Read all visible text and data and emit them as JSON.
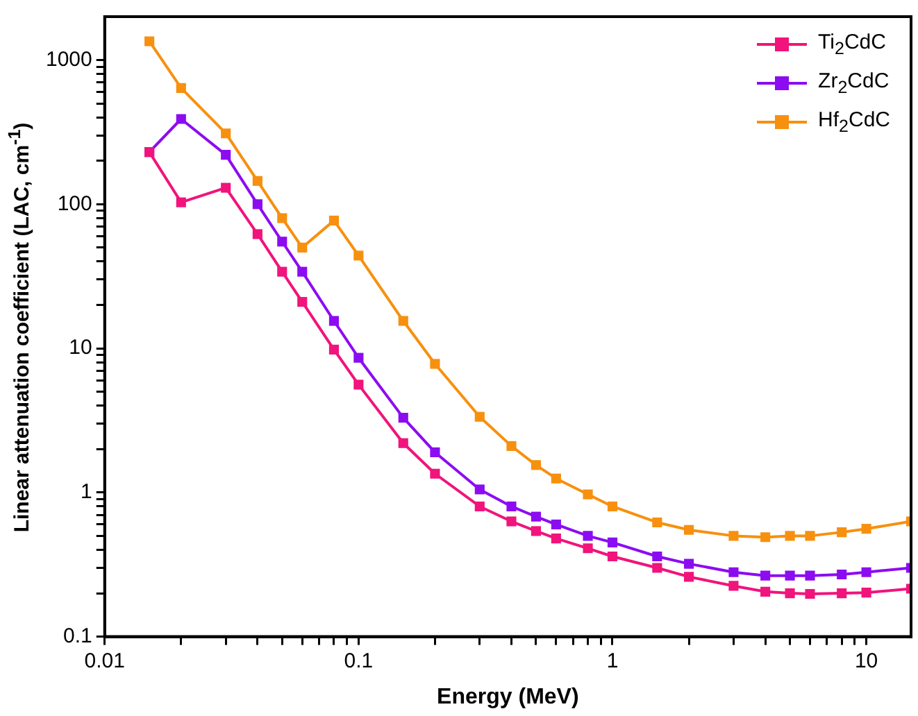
{
  "chart_data": {
    "type": "line",
    "xlabel": "Energy (MeV)",
    "ylabel": "Linear attenuation coefficient (LAC, cm$^{-1}$)",
    "x": [
      0.015,
      0.02,
      0.03,
      0.04,
      0.05,
      0.06,
      0.08,
      0.1,
      0.15,
      0.2,
      0.3,
      0.4,
      0.5,
      0.6,
      0.8,
      1,
      1.5,
      2,
      3,
      4,
      5,
      6,
      8,
      10,
      15
    ],
    "series": [
      {
        "name": "Ti$_{2}$CdC",
        "color": "#f0147c",
        "values": [
          230,
          103,
          130,
          62,
          34,
          21,
          9.8,
          5.6,
          2.2,
          1.35,
          0.8,
          0.63,
          0.54,
          0.48,
          0.41,
          0.36,
          0.3,
          0.26,
          0.225,
          0.205,
          0.2,
          0.198,
          0.2,
          0.202,
          0.215
        ]
      },
      {
        "name": "Zr$_{2}$CdC",
        "color": "#8c0cf2",
        "values": [
          230,
          390,
          220,
          100,
          55,
          34,
          15.5,
          8.6,
          3.3,
          1.9,
          1.05,
          0.8,
          0.68,
          0.6,
          0.5,
          0.45,
          0.36,
          0.32,
          0.28,
          0.265,
          0.265,
          0.265,
          0.27,
          0.28,
          0.3
        ]
      },
      {
        "name": "Hf$_{2}$CdC",
        "color": "#f7900e",
        "values": [
          1350,
          640,
          310,
          145,
          80,
          50,
          77,
          44,
          15.5,
          7.8,
          3.35,
          2.1,
          1.55,
          1.25,
          0.97,
          0.8,
          0.62,
          0.55,
          0.5,
          0.49,
          0.5,
          0.5,
          0.53,
          0.56,
          0.63
        ]
      }
    ],
    "log": "xy",
    "xlim": [
      0.01,
      15
    ],
    "ylim": [
      0.1,
      2000
    ],
    "xticks": [
      0.01,
      {
        "value": 0.02,
        "label": null
      },
      {
        "value": 0.03,
        "label": null
      },
      {
        "value": 0.04,
        "label": null
      },
      {
        "value": 0.05,
        "label": null
      },
      {
        "value": 0.06,
        "label": null
      },
      {
        "value": 0.07,
        "label": null
      },
      {
        "value": 0.08,
        "label": null
      },
      {
        "value": 0.09,
        "label": null
      },
      0.1,
      {
        "value": 0.2,
        "label": null
      },
      {
        "value": 0.3,
        "label": null
      },
      {
        "value": 0.4,
        "label": null
      },
      {
        "value": 0.5,
        "label": null
      },
      {
        "value": 0.6,
        "label": null
      },
      {
        "value": 0.7,
        "label": null
      },
      {
        "value": 0.8,
        "label": null
      },
      {
        "value": 0.9,
        "label": null
      },
      1,
      {
        "value": 2,
        "label": null
      },
      {
        "value": 3,
        "label": null
      },
      {
        "value": 4,
        "label": null
      },
      {
        "value": 5,
        "label": null
      },
      {
        "value": 6,
        "label": null
      },
      {
        "value": 7,
        "label": null
      },
      {
        "value": 8,
        "label": null
      },
      {
        "value": 9,
        "label": null
      },
      10
    ],
    "yticks": [
      0.1,
      {
        "value": 0.2,
        "label": null
      },
      {
        "value": 0.3,
        "label": null
      },
      {
        "value": 0.4,
        "label": null
      },
      {
        "value": 0.5,
        "label": null
      },
      {
        "value": 0.6,
        "label": null
      },
      {
        "value": 0.7,
        "label": null
      },
      {
        "value": 0.8,
        "label": null
      },
      {
        "value": 0.9,
        "label": null
      },
      1,
      {
        "value": 2,
        "label": null
      },
      {
        "value": 3,
        "label": null
      },
      {
        "value": 4,
        "label": null
      },
      {
        "value": 5,
        "label": null
      },
      {
        "value": 6,
        "label": null
      },
      {
        "value": 7,
        "label": null
      },
      {
        "value": 8,
        "label": null
      },
      {
        "value": 9,
        "label": null
      },
      10,
      {
        "value": 20,
        "label": null
      },
      {
        "value": 30,
        "label": null
      },
      {
        "value": 40,
        "label": null
      },
      {
        "value": 50,
        "label": null
      },
      {
        "value": 60,
        "label": null
      },
      {
        "value": 70,
        "label": null
      },
      {
        "value": 80,
        "label": null
      },
      {
        "value": 90,
        "label": null
      },
      100,
      {
        "value": 200,
        "label": null
      },
      {
        "value": 300,
        "label": null
      },
      {
        "value": 400,
        "label": null
      },
      {
        "value": 500,
        "label": null
      },
      {
        "value": 600,
        "label": null
      },
      {
        "value": 700,
        "label": null
      },
      {
        "value": 800,
        "label": null
      },
      {
        "value": 900,
        "label": null
      },
      1000
    ],
    "grid": false,
    "legend": "top right",
    "marker": "square",
    "line_style": "solid"
  }
}
